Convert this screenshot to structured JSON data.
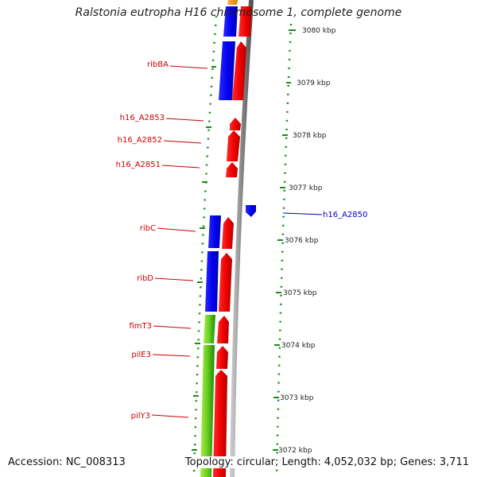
{
  "title": "Ralstonia eutropha H16 chromosome 1, complete genome",
  "footer": {
    "accession": "Accession: NC_008313",
    "topology": "Topology: circular; Length: 4,052,032 bp; Genes: 3,711"
  },
  "ticks": [
    {
      "label": "3080 kbp"
    },
    {
      "label": "3079 kbp"
    },
    {
      "label": "3078 kbp"
    },
    {
      "label": "3077 kbp"
    },
    {
      "label": "3076 kbp"
    },
    {
      "label": "3075 kbp"
    },
    {
      "label": "3074 kbp"
    },
    {
      "label": "3073 kbp"
    },
    {
      "label": "3072 kbp"
    }
  ],
  "gene_labels": [
    {
      "label": "ribBA",
      "color": "#cc0000"
    },
    {
      "label": "h16_A2853",
      "color": "#cc0000"
    },
    {
      "label": "h16_A2852",
      "color": "#cc0000"
    },
    {
      "label": "h16_A2851",
      "color": "#cc0000"
    },
    {
      "label": "ribC",
      "color": "#cc0000"
    },
    {
      "label": "ribD",
      "color": "#cc0000"
    },
    {
      "label": "fimT3",
      "color": "#cc0000"
    },
    {
      "label": "pilE3",
      "color": "#cc0000"
    },
    {
      "label": "pilY3",
      "color": "#cc0000"
    },
    {
      "label": "h16_A2850",
      "color": "#0000cc"
    }
  ],
  "colors": {
    "forward_cds": "#ff0000",
    "reverse_cds": "#0000ff",
    "other_feature": "#ff9900",
    "green_feature": "#33aa00",
    "light_green_feature": "#99ee33",
    "backbone": "#888888",
    "dotted_ring": "#1a8a1a",
    "forward_label": "#cc0000",
    "reverse_label": "#0000cc"
  }
}
